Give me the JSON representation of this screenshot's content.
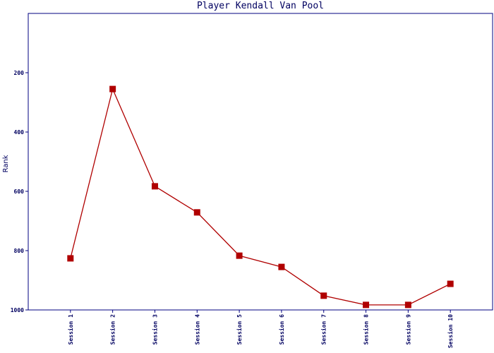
{
  "chart_data": {
    "type": "line",
    "title": "Player Kendall Van Pool",
    "y_label": "Rank",
    "categories": [
      "Session 1",
      "Session 2",
      "Session 3",
      "Session 4",
      "Session 5",
      "Session 6",
      "Session 7",
      "Session 8",
      "Session 9",
      "Session 10"
    ],
    "series": [
      {
        "name": "Rank",
        "color": "#b00000",
        "values": [
          826,
          255,
          583,
          671,
          817,
          855,
          952,
          983,
          983,
          912
        ]
      }
    ],
    "ylim": [
      0,
      1000
    ],
    "yticks": [
      200,
      400,
      600,
      800,
      1000
    ],
    "y_inverted": true
  }
}
